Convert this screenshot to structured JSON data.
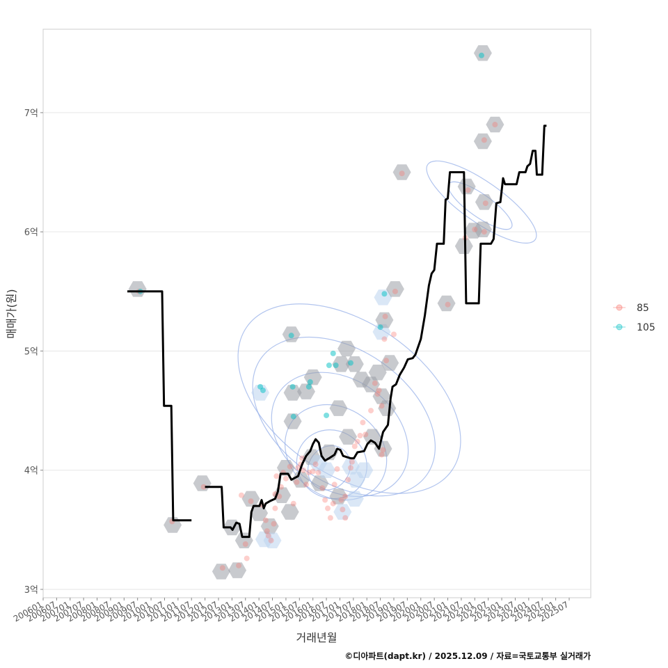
{
  "chart_data": {
    "type": "line",
    "title": "",
    "xlabel": "거래년월",
    "ylabel": "매매가(원)",
    "caption": "©디아파트(dapt.kr) / 2025.12.09 / 자료=국토교통부 실거래가",
    "xlim": [
      2006.0,
      2026.3
    ],
    "ylim": [
      2.93,
      7.7
    ],
    "y_ticks": [
      {
        "value": 3,
        "label": "3억"
      },
      {
        "value": 4,
        "label": "4억"
      },
      {
        "value": 5,
        "label": "5억"
      },
      {
        "value": 6,
        "label": "6억"
      },
      {
        "value": 7,
        "label": "7억"
      }
    ],
    "x_ticks": [
      {
        "value": 2006.0,
        "label": "200601"
      },
      {
        "value": 2006.5,
        "label": "200607"
      },
      {
        "value": 2007.0,
        "label": "200701"
      },
      {
        "value": 2007.5,
        "label": "200707"
      },
      {
        "value": 2008.0,
        "label": "200801"
      },
      {
        "value": 2008.5,
        "label": "200807"
      },
      {
        "value": 2009.0,
        "label": "200901"
      },
      {
        "value": 2009.5,
        "label": "200907"
      },
      {
        "value": 2010.0,
        "label": "201001"
      },
      {
        "value": 2010.5,
        "label": "201007"
      },
      {
        "value": 2011.0,
        "label": "201101"
      },
      {
        "value": 2011.5,
        "label": "201107"
      },
      {
        "value": 2012.0,
        "label": "201201"
      },
      {
        "value": 2012.5,
        "label": "201207"
      },
      {
        "value": 2013.0,
        "label": "201301"
      },
      {
        "value": 2013.5,
        "label": "201307"
      },
      {
        "value": 2014.0,
        "label": "201401"
      },
      {
        "value": 2014.5,
        "label": "201407"
      },
      {
        "value": 2015.0,
        "label": "201501"
      },
      {
        "value": 2015.5,
        "label": "201507"
      },
      {
        "value": 2016.0,
        "label": "201601"
      },
      {
        "value": 2016.5,
        "label": "201607"
      },
      {
        "value": 2017.0,
        "label": "201701"
      },
      {
        "value": 2017.5,
        "label": "201707"
      },
      {
        "value": 2018.0,
        "label": "201801"
      },
      {
        "value": 2018.5,
        "label": "201807"
      },
      {
        "value": 2019.0,
        "label": "201901"
      },
      {
        "value": 2019.5,
        "label": "201907"
      },
      {
        "value": 2020.0,
        "label": "202001"
      },
      {
        "value": 2020.5,
        "label": "202007"
      },
      {
        "value": 2021.0,
        "label": "202101"
      },
      {
        "value": 2021.5,
        "label": "202107"
      },
      {
        "value": 2022.0,
        "label": "202201"
      },
      {
        "value": 2022.5,
        "label": "202207"
      },
      {
        "value": 2023.0,
        "label": "202301"
      },
      {
        "value": 2023.5,
        "label": "202307"
      },
      {
        "value": 2024.0,
        "label": "202401"
      },
      {
        "value": 2024.5,
        "label": "202407"
      },
      {
        "value": 2025.0,
        "label": "202501"
      },
      {
        "value": 2025.5,
        "label": "202507"
      }
    ],
    "legend": {
      "placement": "right",
      "entries": [
        {
          "name": "85",
          "color": "#F8766D"
        },
        {
          "name": "105",
          "color": "#00BFC4"
        }
      ]
    },
    "colors": {
      "line": "#000000",
      "hex": "#9a9ea6",
      "hex_light": "#bcd3ee",
      "contour": "#97b0e8",
      "grid": "#e6e6e6",
      "panel_border": "#cccccc"
    },
    "series": [
      {
        "name": "moving-average",
        "type": "step",
        "segments": [
          [
            [
              2009.12,
              5.5
            ],
            [
              2010.41,
              5.5
            ],
            [
              2010.48,
              4.54
            ],
            [
              2010.75,
              4.54
            ],
            [
              2010.82,
              3.58
            ],
            [
              2011.5,
              3.58
            ]
          ],
          [
            [
              2012.0,
              3.86
            ],
            [
              2012.62,
              3.86
            ],
            [
              2012.69,
              3.52
            ],
            [
              2012.95,
              3.52
            ],
            [
              2013.02,
              3.5
            ],
            [
              2013.16,
              3.56
            ],
            [
              2013.28,
              3.55
            ],
            [
              2013.38,
              3.44
            ],
            [
              2013.64,
              3.44
            ],
            [
              2013.72,
              3.65
            ],
            [
              2013.8,
              3.7
            ],
            [
              2014.02,
              3.7
            ],
            [
              2014.1,
              3.75
            ],
            [
              2014.18,
              3.68
            ],
            [
              2014.25,
              3.72
            ],
            [
              2014.4,
              3.74
            ],
            [
              2014.6,
              3.76
            ],
            [
              2014.7,
              3.82
            ],
            [
              2014.8,
              3.97
            ],
            [
              2015.08,
              3.97
            ],
            [
              2015.2,
              3.92
            ],
            [
              2015.45,
              3.95
            ],
            [
              2015.6,
              4.05
            ],
            [
              2015.75,
              4.12
            ],
            [
              2015.9,
              4.16
            ],
            [
              2016.0,
              4.22
            ],
            [
              2016.1,
              4.26
            ],
            [
              2016.22,
              4.23
            ],
            [
              2016.32,
              4.12
            ],
            [
              2016.45,
              4.08
            ],
            [
              2016.6,
              4.1
            ],
            [
              2016.8,
              4.13
            ],
            [
              2016.9,
              4.18
            ],
            [
              2017.02,
              4.17
            ],
            [
              2017.12,
              4.12
            ],
            [
              2017.26,
              4.11
            ],
            [
              2017.4,
              4.1
            ],
            [
              2017.52,
              4.1
            ],
            [
              2017.65,
              4.15
            ],
            [
              2017.9,
              4.16
            ],
            [
              2018.02,
              4.22
            ],
            [
              2018.15,
              4.25
            ],
            [
              2018.3,
              4.23
            ],
            [
              2018.45,
              4.18
            ],
            [
              2018.6,
              4.32
            ],
            [
              2018.78,
              4.38
            ],
            [
              2018.88,
              4.6
            ],
            [
              2018.95,
              4.7
            ],
            [
              2019.08,
              4.72
            ],
            [
              2019.22,
              4.8
            ],
            [
              2019.38,
              4.86
            ],
            [
              2019.52,
              4.93
            ],
            [
              2019.7,
              4.94
            ],
            [
              2019.8,
              4.97
            ],
            [
              2020.0,
              5.1
            ],
            [
              2020.15,
              5.3
            ],
            [
              2020.3,
              5.55
            ],
            [
              2020.4,
              5.65
            ],
            [
              2020.5,
              5.68
            ],
            [
              2020.6,
              5.9
            ],
            [
              2020.85,
              5.9
            ],
            [
              2020.92,
              6.27
            ],
            [
              2021.0,
              6.28
            ],
            [
              2021.08,
              6.5
            ],
            [
              2021.6,
              6.5
            ],
            [
              2021.68,
              5.4
            ],
            [
              2022.15,
              5.4
            ],
            [
              2022.22,
              5.9
            ],
            [
              2022.6,
              5.9
            ],
            [
              2022.7,
              5.94
            ],
            [
              2022.8,
              6.24
            ],
            [
              2022.95,
              6.25
            ],
            [
              2023.05,
              6.45
            ],
            [
              2023.12,
              6.4
            ],
            [
              2023.55,
              6.4
            ],
            [
              2023.65,
              6.5
            ],
            [
              2023.88,
              6.5
            ],
            [
              2023.95,
              6.55
            ],
            [
              2024.05,
              6.57
            ],
            [
              2024.15,
              6.68
            ],
            [
              2024.25,
              6.68
            ],
            [
              2024.3,
              6.48
            ],
            [
              2024.5,
              6.48
            ],
            [
              2024.58,
              6.89
            ],
            [
              2024.66,
              6.89
            ]
          ]
        ]
      }
    ],
    "hexbins": [
      [
        2009.5,
        5.52,
        0
      ],
      [
        2010.8,
        3.54,
        0
      ],
      [
        2011.9,
        3.89,
        0
      ],
      [
        2013.0,
        3.52,
        0
      ],
      [
        2012.6,
        3.15,
        0
      ],
      [
        2013.2,
        3.16,
        0
      ],
      [
        2013.45,
        3.41,
        0
      ],
      [
        2013.7,
        3.76,
        0
      ],
      [
        2014.0,
        3.64,
        0
      ],
      [
        2014.2,
        3.42,
        1
      ],
      [
        2014.4,
        3.53,
        0
      ],
      [
        2014.5,
        3.41,
        1
      ],
      [
        2014.05,
        4.65,
        1
      ],
      [
        2014.85,
        3.79,
        0
      ],
      [
        2015.0,
        4.02,
        0
      ],
      [
        2015.15,
        3.65,
        0
      ],
      [
        2015.2,
        5.14,
        0
      ],
      [
        2015.25,
        4.65,
        0
      ],
      [
        2015.25,
        4.41,
        0
      ],
      [
        2015.55,
        3.92,
        0
      ],
      [
        2015.75,
        4.66,
        0
      ],
      [
        2016.0,
        4.78,
        0
      ],
      [
        2015.95,
        4.11,
        0
      ],
      [
        2016.2,
        4.06,
        1
      ],
      [
        2016.25,
        3.89,
        0
      ],
      [
        2016.5,
        4.0,
        1
      ],
      [
        2016.6,
        4.15,
        0
      ],
      [
        2016.95,
        4.52,
        0
      ],
      [
        2016.95,
        3.78,
        0
      ],
      [
        2017.05,
        4.89,
        0
      ],
      [
        2017.25,
        5.02,
        0
      ],
      [
        2017.3,
        4.28,
        0
      ],
      [
        2017.4,
        4.03,
        1
      ],
      [
        2017.55,
        3.76,
        1
      ],
      [
        2017.6,
        3.92,
        1
      ],
      [
        2017.55,
        4.89,
        0
      ],
      [
        2017.8,
        4.76,
        0
      ],
      [
        2017.9,
        4.0,
        1
      ],
      [
        2018.15,
        4.72,
        0
      ],
      [
        2018.2,
        4.28,
        0
      ],
      [
        2018.4,
        4.82,
        0
      ],
      [
        2018.55,
        4.62,
        0
      ],
      [
        2018.6,
        4.18,
        0
      ],
      [
        2018.55,
        5.16,
        1
      ],
      [
        2018.6,
        5.45,
        1
      ],
      [
        2018.65,
        5.26,
        0
      ],
      [
        2018.85,
        4.9,
        0
      ],
      [
        2018.75,
        4.52,
        0
      ],
      [
        2019.05,
        5.52,
        0
      ],
      [
        2019.3,
        6.5,
        0
      ],
      [
        2017.1,
        3.65,
        1
      ],
      [
        2020.95,
        5.4,
        0
      ],
      [
        2021.6,
        5.88,
        0
      ],
      [
        2021.7,
        6.38,
        0
      ],
      [
        2021.95,
        6.01,
        0
      ],
      [
        2022.3,
        6.02,
        0
      ],
      [
        2022.35,
        6.25,
        0
      ],
      [
        2022.3,
        6.76,
        0
      ],
      [
        2022.3,
        7.5,
        0
      ],
      [
        2022.75,
        6.9,
        0
      ]
    ],
    "points_85": [
      [
        2009.55,
        5.5
      ],
      [
        2010.78,
        3.57
      ],
      [
        2011.95,
        3.86
      ],
      [
        2012.65,
        3.18
      ],
      [
        2013.25,
        3.2
      ],
      [
        2013.5,
        3.38
      ],
      [
        2013.55,
        3.26
      ],
      [
        2013.35,
        3.79
      ],
      [
        2013.7,
        3.74
      ],
      [
        2014.1,
        3.71
      ],
      [
        2014.25,
        3.58
      ],
      [
        2014.3,
        3.49
      ],
      [
        2014.35,
        3.45
      ],
      [
        2014.45,
        3.41
      ],
      [
        2014.55,
        3.55
      ],
      [
        2014.6,
        3.68
      ],
      [
        2014.6,
        3.8
      ],
      [
        2014.65,
        3.95
      ],
      [
        2014.75,
        3.78
      ],
      [
        2014.82,
        3.86
      ],
      [
        2014.9,
        3.98
      ],
      [
        2015.0,
        3.93
      ],
      [
        2015.15,
        4.03
      ],
      [
        2015.28,
        3.72
      ],
      [
        2015.4,
        3.9
      ],
      [
        2015.45,
        4.02
      ],
      [
        2015.55,
        4.05
      ],
      [
        2015.6,
        4.1
      ],
      [
        2015.65,
        4.0
      ],
      [
        2015.75,
        3.88
      ],
      [
        2015.85,
        3.98
      ],
      [
        2016.0,
        3.99
      ],
      [
        2016.1,
        4.05
      ],
      [
        2016.2,
        3.98
      ],
      [
        2016.35,
        3.85
      ],
      [
        2016.45,
        3.75
      ],
      [
        2016.55,
        3.68
      ],
      [
        2016.65,
        3.6
      ],
      [
        2016.75,
        3.72
      ],
      [
        2016.8,
        3.88
      ],
      [
        2016.9,
        4.01
      ],
      [
        2017.05,
        3.75
      ],
      [
        2017.1,
        3.67
      ],
      [
        2017.2,
        3.78
      ],
      [
        2017.3,
        3.92
      ],
      [
        2017.4,
        4.02
      ],
      [
        2017.45,
        4.07
      ],
      [
        2017.55,
        4.2
      ],
      [
        2017.65,
        4.24
      ],
      [
        2017.75,
        4.29
      ],
      [
        2017.85,
        4.4
      ],
      [
        2017.95,
        4.3
      ],
      [
        2018.15,
        4.5
      ],
      [
        2018.3,
        4.73
      ],
      [
        2018.4,
        4.64
      ],
      [
        2018.45,
        4.67
      ],
      [
        2018.55,
        4.54
      ],
      [
        2018.55,
        4.13
      ],
      [
        2018.6,
        4.17
      ],
      [
        2018.65,
        5.1
      ],
      [
        2018.68,
        5.29
      ],
      [
        2018.72,
        4.92
      ],
      [
        2019.0,
        5.14
      ],
      [
        2019.05,
        5.5
      ],
      [
        2019.3,
        6.49
      ],
      [
        2017.2,
        3.6
      ],
      [
        2021.0,
        5.39
      ],
      [
        2021.65,
        5.95
      ],
      [
        2021.75,
        6.35
      ],
      [
        2022.0,
        6.02
      ],
      [
        2022.35,
        6.0
      ],
      [
        2022.4,
        6.24
      ],
      [
        2022.35,
        6.77
      ],
      [
        2022.75,
        6.9
      ]
    ],
    "points_105": [
      [
        2009.6,
        5.5
      ],
      [
        2014.05,
        4.7
      ],
      [
        2014.15,
        4.67
      ],
      [
        2015.2,
        5.13
      ],
      [
        2015.25,
        4.7
      ],
      [
        2015.28,
        4.45
      ],
      [
        2015.85,
        4.7
      ],
      [
        2015.9,
        4.74
      ],
      [
        2016.5,
        4.46
      ],
      [
        2016.6,
        4.88
      ],
      [
        2016.75,
        4.98
      ],
      [
        2016.85,
        4.88
      ],
      [
        2017.4,
        4.9
      ],
      [
        2018.5,
        5.2
      ],
      [
        2018.65,
        5.48
      ],
      [
        2022.25,
        7.48
      ]
    ],
    "contours": [
      {
        "cx": 2016.6,
        "cy": 4.02,
        "sx": 0.85,
        "sy": 0.17
      },
      {
        "cx": 2016.7,
        "cy": 4.05,
        "sx": 1.25,
        "sy": 0.3
      },
      {
        "cx": 2016.85,
        "cy": 4.15,
        "sx": 1.65,
        "sy": 0.45
      },
      {
        "cx": 2017.0,
        "cy": 4.3,
        "sx": 2.05,
        "sy": 0.62
      },
      {
        "cx": 2017.15,
        "cy": 4.45,
        "sx": 2.45,
        "sy": 0.85
      },
      {
        "cx": 2017.35,
        "cy": 4.6,
        "sx": 2.8,
        "sy": 1.05
      },
      {
        "cx": 2022.2,
        "cy": 6.22,
        "sx": 0.42,
        "sy": 0.32
      },
      {
        "cx": 2022.25,
        "cy": 6.25,
        "sx": 0.75,
        "sy": 0.55
      }
    ]
  }
}
